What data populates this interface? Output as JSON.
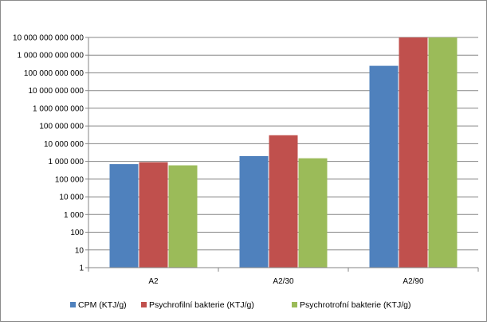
{
  "chart_data": {
    "type": "bar",
    "title": "",
    "xlabel": "",
    "ylabel": "",
    "yscale": "log",
    "ylim": [
      1,
      10000000000000
    ],
    "yticks": [
      1,
      10,
      100,
      1000,
      10000,
      100000,
      1000000,
      10000000,
      100000000,
      1000000000,
      10000000000,
      100000000000,
      1000000000000,
      10000000000000
    ],
    "ytick_labels": [
      "1",
      "10",
      "100",
      "1 000",
      "10 000",
      "100 000",
      "1 000 000",
      "10 000 000",
      "100 000 000",
      "1 000 000 000",
      "10 000 000 000",
      "100 000 000 000",
      "1 000 000 000 000",
      "10 000 000 000 000"
    ],
    "categories": [
      "A2",
      "A2/30",
      "A2/90"
    ],
    "series": [
      {
        "name": "CPM (KTJ/g)",
        "color": "#4f81bd",
        "values": [
          700000,
          2000000,
          250000000000
        ]
      },
      {
        "name": "Psychrofilní bakterie (KTJ/g)",
        "color": "#c0504d",
        "values": [
          900000,
          30000000,
          10000000000000
        ]
      },
      {
        "name": "Psychrotrofní bakterie (KTJ/g)",
        "color": "#9bbb59",
        "values": [
          600000,
          1500000,
          10000000000000
        ]
      }
    ],
    "grid": true,
    "legend_position": "bottom"
  }
}
